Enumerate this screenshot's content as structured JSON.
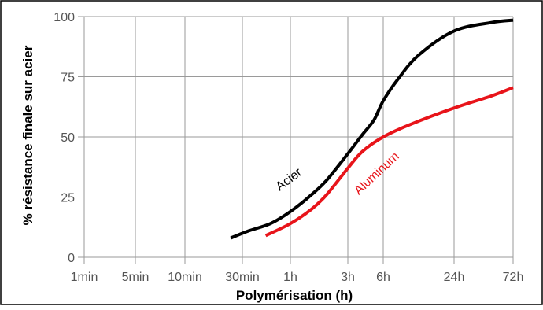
{
  "chart_data": {
    "type": "line",
    "xlabel": "Polymérisation (h)",
    "ylabel": "% résistance finale sur acier",
    "x_scale": "log",
    "x_ticks": [
      {
        "label": "1min",
        "hours": 0.0166667
      },
      {
        "label": "5min",
        "hours": 0.0833333
      },
      {
        "label": "10min",
        "hours": 0.1666667
      },
      {
        "label": "30min",
        "hours": 0.5
      },
      {
        "label": "1h",
        "hours": 1
      },
      {
        "label": "3h",
        "hours": 3
      },
      {
        "label": "6h",
        "hours": 6
      },
      {
        "label": "24h",
        "hours": 24
      },
      {
        "label": "72h",
        "hours": 72
      }
    ],
    "y_ticks": [
      0,
      25,
      50,
      75,
      100
    ],
    "ylim": [
      0,
      100
    ],
    "grid": true,
    "series": [
      {
        "name": "Acier",
        "color": "#000000",
        "x": [
          0.4,
          0.55,
          0.75,
          1.0,
          1.5,
          2.0,
          3.0,
          4.0,
          5.0,
          6.0,
          8.0,
          12.0,
          24.0,
          48.0,
          72.0
        ],
        "y": [
          8,
          11,
          14,
          19,
          26,
          32,
          43,
          51,
          57,
          65,
          74,
          84,
          94,
          97.5,
          98.5
        ]
      },
      {
        "name": "Aluminum",
        "color": "#e8141a",
        "x": [
          0.7,
          1.0,
          1.5,
          2.0,
          3.0,
          4.0,
          6.0,
          10.0,
          24.0,
          48.0,
          72.0
        ],
        "y": [
          9,
          14,
          20,
          26,
          37,
          44,
          50,
          55,
          62,
          67,
          70.5
        ]
      }
    ],
    "annotations": [
      {
        "text": "Acier",
        "color": "#000000"
      },
      {
        "text": "Aluminum",
        "color": "#e8141a"
      }
    ]
  }
}
